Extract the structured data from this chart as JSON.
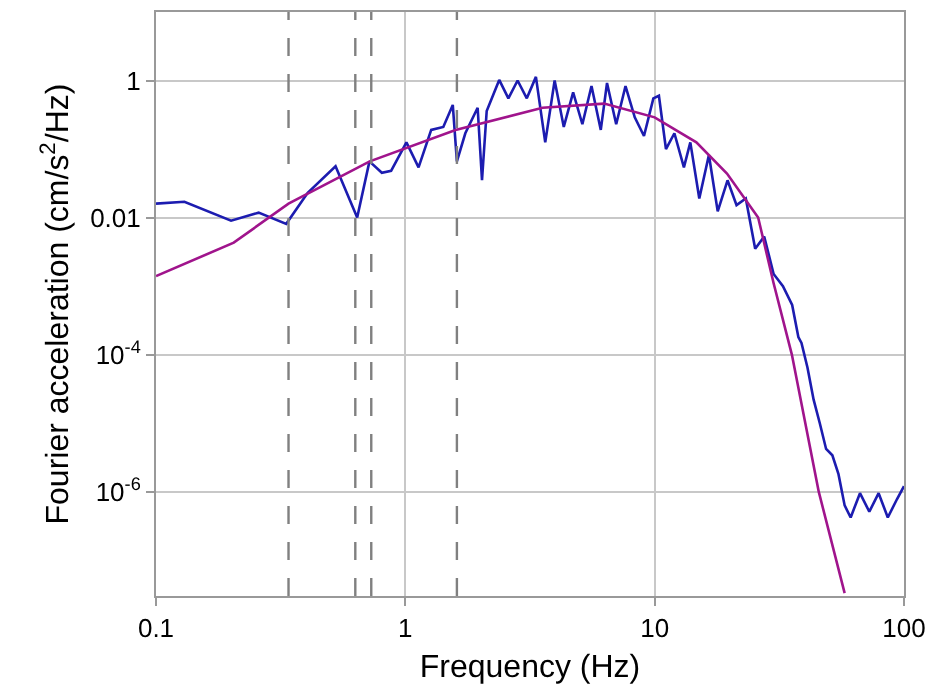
{
  "chart_data": {
    "type": "line",
    "xlabel": "Frequency (Hz)",
    "ylabel": "Fourier acceleration (cm/s$^{2}$/Hz)",
    "log": "xy",
    "grid": true,
    "marker": "none",
    "line_style": "solid",
    "xlim": [
      0.1,
      100
    ],
    "xticks": [
      0.1,
      1,
      10,
      100
    ],
    "ylim": [
      3e-08,
      10
    ],
    "yticks": [
      {
        "value": 1e-06,
        "label": "10$^{-6}$"
      },
      {
        "value": 0.0001,
        "label": "10$^{-4}$"
      },
      0.01,
      1
    ],
    "series": [
      {
        "color": "#1c1cb0",
        "x": [
          0.1,
          0.13,
          0.2,
          0.258,
          0.333,
          0.406,
          0.525,
          0.641,
          0.718,
          0.805,
          0.877,
          1.01,
          1.13,
          1.27,
          1.42,
          1.55,
          1.61,
          1.74,
          1.95,
          2.03,
          2.12,
          2.38,
          2.59,
          2.82,
          3.07,
          3.34,
          3.64,
          3.97,
          4.32,
          4.71,
          5.13,
          5.58,
          6.08,
          6.44,
          7.01,
          7.64,
          8.32,
          9.06,
          9.88,
          10.4,
          11.1,
          12,
          13.1,
          13.9,
          15.1,
          16.5,
          17.9,
          19.6,
          21.3,
          23.2,
          25.3,
          27.5,
          30,
          32.7,
          35.6,
          37.7,
          38.8,
          41,
          43.4,
          46,
          48.7,
          51.6,
          54.6,
          57.8,
          61.1,
          66.6,
          72.6,
          79.1,
          86.1,
          93.8,
          100
        ],
        "values": [
          0.016,
          0.017,
          0.009,
          0.0118,
          0.0081,
          0.023,
          0.056,
          0.01,
          0.066,
          0.045,
          0.048,
          0.125,
          0.054,
          0.19,
          0.21,
          0.44,
          0.066,
          0.17,
          0.4,
          0.035,
          0.36,
          1.02,
          0.55,
          1,
          0.55,
          1.13,
          0.125,
          1,
          0.21,
          0.67,
          0.23,
          0.83,
          0.19,
          0.92,
          0.23,
          0.83,
          0.29,
          0.155,
          0.55,
          0.6,
          0.1,
          0.17,
          0.054,
          0.125,
          0.019,
          0.082,
          0.0123,
          0.035,
          0.0152,
          0.019,
          0.0035,
          0.0053,
          0.0015,
          0.001,
          0.00053,
          0.00018,
          0.000148,
          6.5e-05,
          2.2e-05,
          9.8e-06,
          4.2e-06,
          3.4e-06,
          1.8e-06,
          6.3e-07,
          4.2e-07,
          9.5e-07,
          5.1e-07,
          9.5e-07,
          4.2e-07,
          7.8e-07,
          1.2e-06
        ]
      },
      {
        "color": "#a0148c",
        "x": [
          0.1,
          0.205,
          0.34,
          0.72,
          1.59,
          3.55,
          6.27,
          10,
          14.7,
          19.5,
          26,
          30,
          35.5,
          45.5,
          57.8
        ],
        "values": [
          0.0014,
          0.0043,
          0.016,
          0.066,
          0.19,
          0.4,
          0.46,
          0.29,
          0.125,
          0.044,
          0.01,
          0.0011,
          0.0001,
          1e-06,
          3.3e-08
        ]
      }
    ],
    "ref_lines": [
      {
        "axis": "x",
        "value": 0.34,
        "color": "#808080",
        "line_style": "dashed"
      },
      {
        "axis": "x",
        "value": 0.63,
        "color": "#808080",
        "line_style": "dashed"
      },
      {
        "axis": "x",
        "value": 0.73,
        "color": "#808080",
        "line_style": "dashed"
      },
      {
        "axis": "x",
        "value": 1.61,
        "color": "#808080",
        "line_style": "dashed"
      }
    ]
  }
}
